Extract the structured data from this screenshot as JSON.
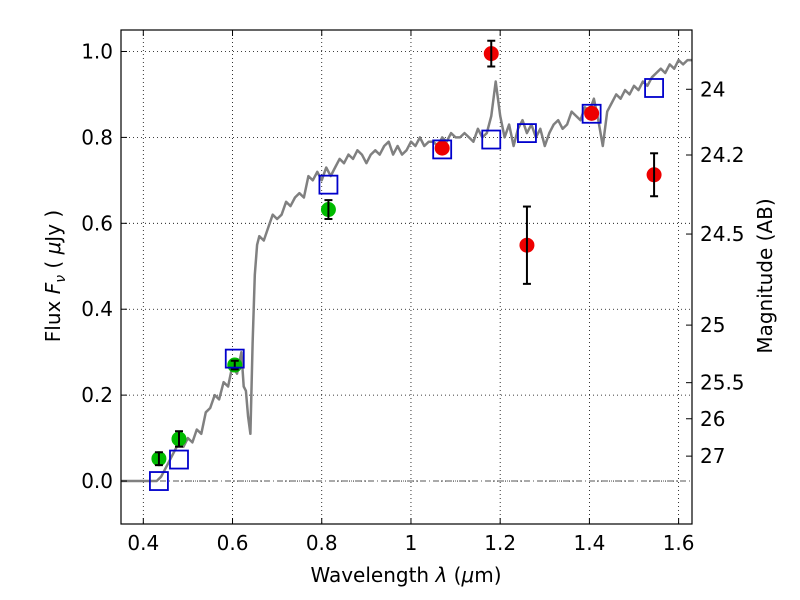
{
  "chart_data": {
    "type": "scatter",
    "xlabel": "Wavelength  λ (μm)",
    "ylabel": "Flux  F_ν  ( μJy )",
    "ylabel_parts": {
      "prefix": "Flux  ",
      "var": "F",
      "sub": "ν",
      "open": "  ( ",
      "mu": "μ",
      "unit": "Jy )"
    },
    "xlabel_parts": {
      "prefix": "Wavelength  ",
      "lambda": "λ",
      "open": " (",
      "mu": "μ",
      "unit": "m)"
    },
    "y2label": "Magnitude (AB)",
    "xlim": [
      0.35,
      1.63
    ],
    "ylim": [
      -0.1,
      1.05
    ],
    "grid": true,
    "xticks": [
      0.4,
      0.6,
      0.8,
      1.0,
      1.2,
      1.4,
      1.6
    ],
    "xtick_labels": [
      "0.4",
      "0.6",
      "0.8",
      "1",
      "1.2",
      "1.4",
      "1.6"
    ],
    "yticks": [
      0.0,
      0.2,
      0.4,
      0.6,
      0.8,
      1.0
    ],
    "ytick_labels": [
      "0.0",
      "0.2",
      "0.4",
      "0.6",
      "0.8",
      "1.0"
    ],
    "y2ticks": [
      {
        "label": "24",
        "flux": 0.912
      },
      {
        "label": "24.2",
        "flux": 0.759
      },
      {
        "label": "24.5",
        "flux": 0.575
      },
      {
        "label": "25",
        "flux": 0.363
      },
      {
        "label": "25.5",
        "flux": 0.229
      },
      {
        "label": "26",
        "flux": 0.145
      },
      {
        "label": "27",
        "flux": 0.058
      }
    ],
    "colors": {
      "spectrum": "#808080",
      "green_points": "#00bb00",
      "red_points": "#ee0000",
      "model_boxes": "#0000cc",
      "error_bars": "#000000"
    },
    "series": [
      {
        "kind": "line",
        "x": [
          0.35,
          0.43,
          0.44,
          0.45,
          0.46,
          0.47,
          0.48,
          0.49,
          0.5,
          0.51,
          0.52,
          0.53,
          0.54,
          0.55,
          0.56,
          0.57,
          0.58,
          0.59,
          0.6,
          0.61,
          0.62,
          0.625,
          0.63,
          0.635,
          0.64,
          0.645,
          0.65,
          0.655,
          0.66,
          0.67,
          0.68,
          0.69,
          0.7,
          0.71,
          0.72,
          0.73,
          0.74,
          0.75,
          0.76,
          0.77,
          0.78,
          0.79,
          0.8,
          0.81,
          0.82,
          0.83,
          0.84,
          0.85,
          0.86,
          0.87,
          0.88,
          0.89,
          0.9,
          0.91,
          0.92,
          0.93,
          0.94,
          0.95,
          0.96,
          0.97,
          0.98,
          0.99,
          1.0,
          1.01,
          1.02,
          1.03,
          1.04,
          1.05,
          1.06,
          1.07,
          1.08,
          1.09,
          1.1,
          1.11,
          1.12,
          1.13,
          1.14,
          1.15,
          1.16,
          1.17,
          1.18,
          1.19,
          1.2,
          1.21,
          1.22,
          1.23,
          1.24,
          1.25,
          1.26,
          1.27,
          1.28,
          1.29,
          1.3,
          1.31,
          1.32,
          1.33,
          1.34,
          1.35,
          1.36,
          1.37,
          1.38,
          1.39,
          1.4,
          1.41,
          1.42,
          1.43,
          1.44,
          1.45,
          1.46,
          1.47,
          1.48,
          1.49,
          1.5,
          1.51,
          1.52,
          1.53,
          1.54,
          1.55,
          1.56,
          1.57,
          1.58,
          1.59,
          1.6,
          1.61,
          1.62,
          1.63
        ],
        "y": [
          0.0,
          0.0,
          0.01,
          0.03,
          0.05,
          0.07,
          0.09,
          0.08,
          0.1,
          0.09,
          0.12,
          0.11,
          0.16,
          0.17,
          0.2,
          0.19,
          0.23,
          0.22,
          0.27,
          0.25,
          0.3,
          0.22,
          0.21,
          0.15,
          0.11,
          0.32,
          0.48,
          0.55,
          0.57,
          0.56,
          0.59,
          0.62,
          0.61,
          0.62,
          0.65,
          0.64,
          0.66,
          0.67,
          0.66,
          0.71,
          0.7,
          0.72,
          0.7,
          0.73,
          0.71,
          0.73,
          0.75,
          0.74,
          0.76,
          0.75,
          0.77,
          0.76,
          0.74,
          0.76,
          0.77,
          0.76,
          0.78,
          0.79,
          0.76,
          0.78,
          0.76,
          0.77,
          0.79,
          0.78,
          0.8,
          0.78,
          0.79,
          0.79,
          0.78,
          0.8,
          0.79,
          0.81,
          0.8,
          0.8,
          0.81,
          0.8,
          0.79,
          0.82,
          0.8,
          0.81,
          0.85,
          0.93,
          0.85,
          0.8,
          0.83,
          0.78,
          0.82,
          0.84,
          0.81,
          0.83,
          0.8,
          0.82,
          0.78,
          0.81,
          0.83,
          0.84,
          0.82,
          0.83,
          0.86,
          0.85,
          0.84,
          0.87,
          0.86,
          0.89,
          0.84,
          0.78,
          0.86,
          0.88,
          0.9,
          0.89,
          0.91,
          0.9,
          0.92,
          0.91,
          0.93,
          0.92,
          0.94,
          0.95,
          0.96,
          0.95,
          0.97,
          0.96,
          0.98,
          0.97,
          0.98,
          0.98
        ]
      },
      {
        "kind": "points",
        "color_key": "green_points",
        "x": [
          0.435,
          0.48,
          0.605,
          0.815
        ],
        "y": [
          0.052,
          0.098,
          0.27,
          0.632
        ],
        "err": [
          0.015,
          0.018,
          0.01,
          0.022
        ]
      },
      {
        "kind": "points",
        "color_key": "red_points",
        "x": [
          1.07,
          1.18,
          1.26,
          1.405,
          1.545
        ],
        "y": [
          0.775,
          0.995,
          0.549,
          0.856,
          0.713
        ],
        "err": [
          0.0,
          0.03,
          0.09,
          0.0,
          0.05
        ]
      },
      {
        "kind": "boxes",
        "color_key": "model_boxes",
        "x": [
          0.435,
          0.48,
          0.605,
          0.815,
          1.07,
          1.18,
          1.26,
          1.405,
          1.545
        ],
        "y": [
          0.0,
          0.05,
          0.285,
          0.69,
          0.772,
          0.795,
          0.81,
          0.855,
          0.915
        ]
      }
    ]
  }
}
